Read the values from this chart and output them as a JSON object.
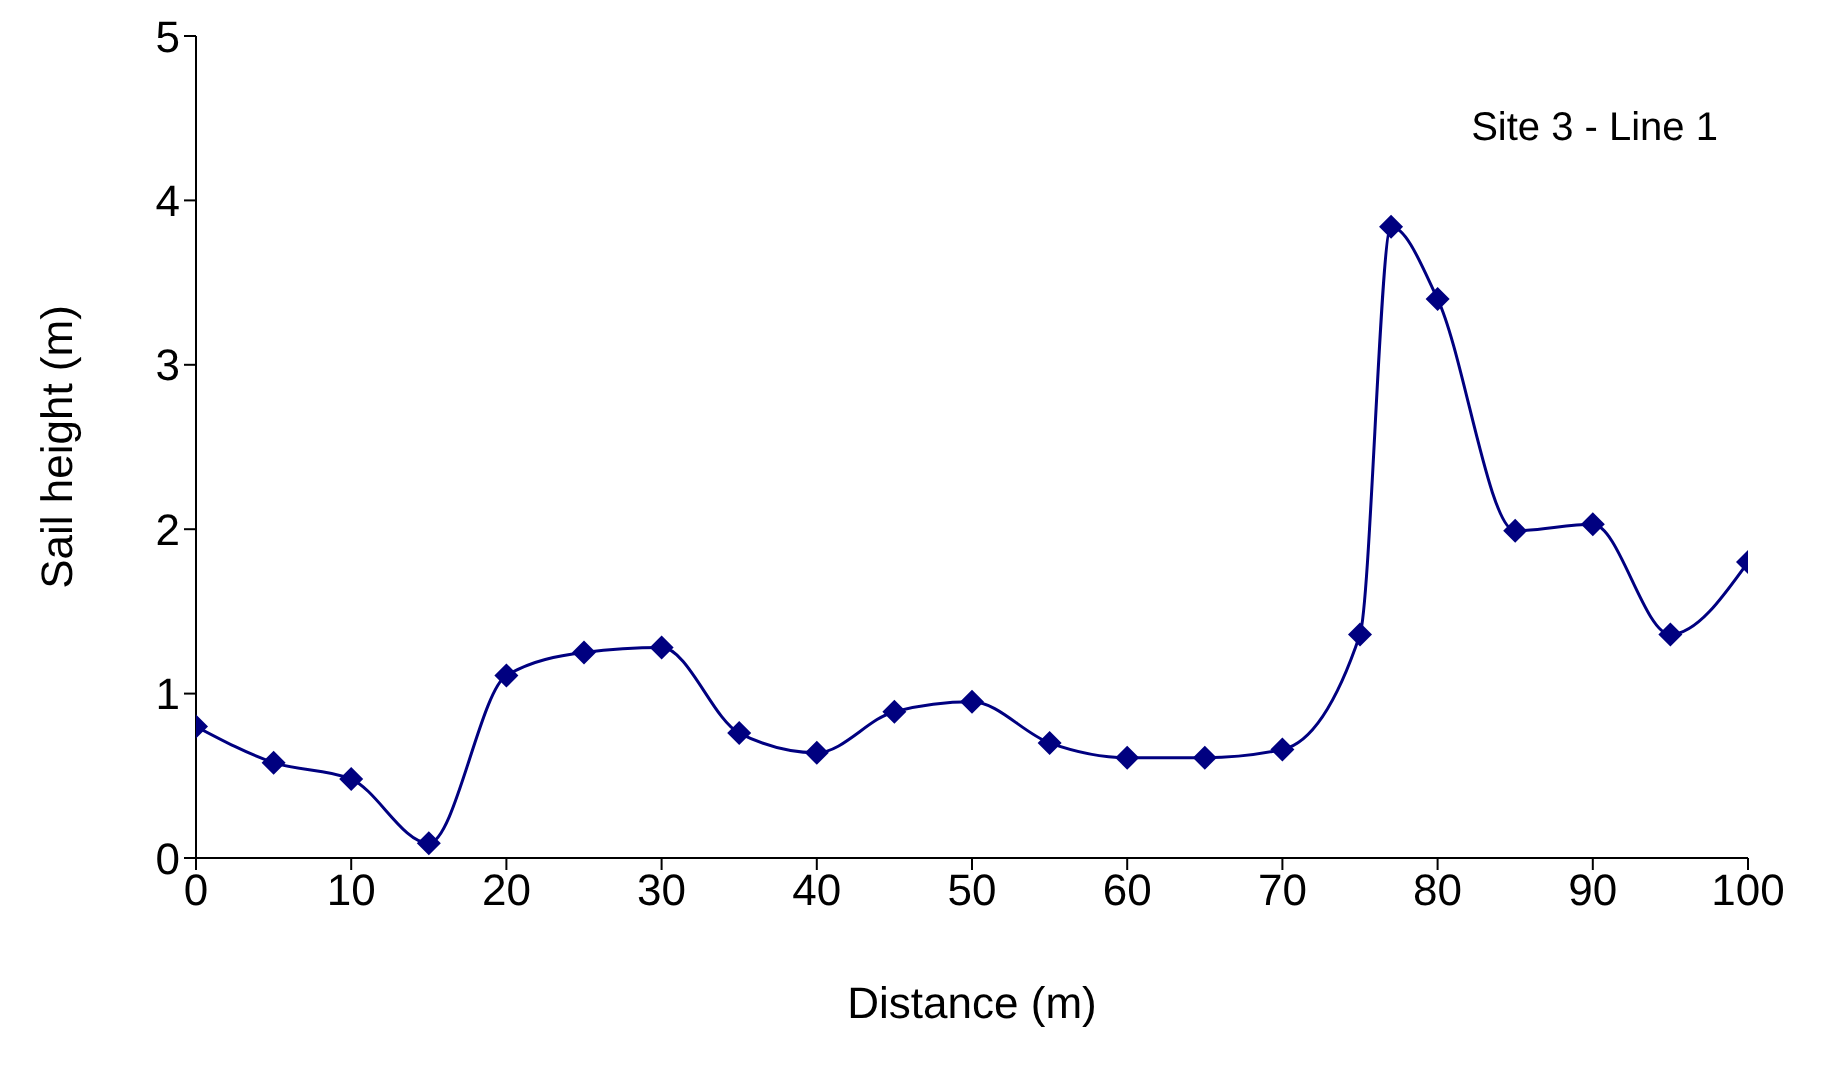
{
  "chart_data": {
    "type": "line",
    "xlabel": "Distance (m)",
    "ylabel": "Sail height (m)",
    "annotations": [
      "Site 3 - Line 1"
    ],
    "x": [
      0,
      5,
      10,
      15,
      20,
      25,
      30,
      35,
      40,
      45,
      50,
      55,
      60,
      65,
      70,
      75,
      77,
      80,
      85,
      90,
      95,
      100
    ],
    "series": [
      {
        "color": "#000080",
        "values": [
          0.8,
          0.58,
          0.48,
          0.09,
          1.11,
          1.25,
          1.28,
          0.76,
          0.64,
          0.89,
          0.95,
          0.7,
          0.61,
          0.61,
          0.66,
          1.36,
          3.84,
          3.4,
          1.99,
          2.03,
          1.36,
          1.8
        ]
      }
    ],
    "xlim": [
      0,
      100
    ],
    "xticks": [
      0,
      10,
      20,
      30,
      40,
      50,
      60,
      70,
      80,
      90,
      100
    ],
    "ylim": [
      0,
      5
    ],
    "yticks": [
      0,
      1,
      2,
      3,
      4,
      5
    ],
    "grid": false,
    "marker": "diamond",
    "line_style": "solid"
  }
}
